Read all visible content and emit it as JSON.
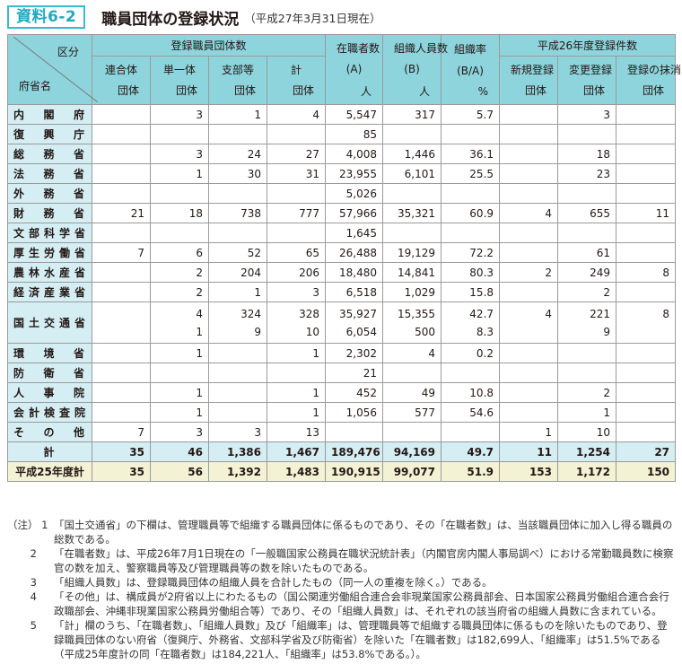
{
  "header": {
    "badge": "資料6-2",
    "title": "職員団体の登録状況",
    "subtitle": "（平成27年3月31日現在）"
  },
  "table": {
    "corner": {
      "top": "区分",
      "bottom": "府省名"
    },
    "groups": {
      "registered": "登録職員団体数",
      "incumbents": "在職者数",
      "members": "組織人員数",
      "rate": "組織率",
      "registrations": "平成26年度登録件数"
    },
    "subheaders": {
      "federation": [
        "連合体",
        "団体"
      ],
      "single": [
        "単一体",
        "団体"
      ],
      "branch": [
        "支部等",
        "団体"
      ],
      "subtotal": [
        "計",
        "団体"
      ],
      "incumbents": [
        "(A)",
        "人"
      ],
      "members": [
        "(B)",
        "人"
      ],
      "rate": [
        "(B/A)",
        "%"
      ],
      "new": [
        "新規登録",
        "団体"
      ],
      "change": [
        "変更登録",
        "団体"
      ],
      "cancel": [
        "登録の抹消",
        "団体"
      ]
    },
    "rows": [
      {
        "name": "内閣府",
        "v": [
          "",
          "3",
          "1",
          "4",
          "5,547",
          "317",
          "5.7",
          "",
          "3",
          ""
        ]
      },
      {
        "name": "復興庁",
        "v": [
          "",
          "",
          "",
          "",
          "85",
          "",
          "",
          "",
          "",
          ""
        ]
      },
      {
        "name": "総務省",
        "v": [
          "",
          "3",
          "24",
          "27",
          "4,008",
          "1,446",
          "36.1",
          "",
          "18",
          ""
        ]
      },
      {
        "name": "法務省",
        "v": [
          "",
          "1",
          "30",
          "31",
          "23,955",
          "6,101",
          "25.5",
          "",
          "23",
          ""
        ]
      },
      {
        "name": "外務省",
        "v": [
          "",
          "",
          "",
          "",
          "5,026",
          "",
          "",
          "",
          "",
          ""
        ]
      },
      {
        "name": "財務省",
        "v": [
          "21",
          "18",
          "738",
          "777",
          "57,966",
          "35,321",
          "60.9",
          "4",
          "655",
          "11"
        ]
      },
      {
        "name": "文部科学省",
        "v": [
          "",
          "",
          "",
          "",
          "1,645",
          "",
          "",
          "",
          "",
          ""
        ]
      },
      {
        "name": "厚生労働省",
        "v": [
          "7",
          "6",
          "52",
          "65",
          "26,488",
          "19,129",
          "72.2",
          "",
          "61",
          ""
        ]
      },
      {
        "name": "農林水産省",
        "v": [
          "",
          "2",
          "204",
          "206",
          "18,480",
          "14,841",
          "80.3",
          "2",
          "249",
          "8"
        ]
      },
      {
        "name": "経済産業省",
        "v": [
          "",
          "2",
          "1",
          "3",
          "6,518",
          "1,029",
          "15.8",
          "",
          "2",
          ""
        ]
      },
      {
        "name": "国土交通省",
        "v": [
          "",
          "4",
          "324",
          "328",
          "35,927",
          "15,355",
          "42.7",
          "4",
          "221",
          "8"
        ],
        "v2": [
          "",
          "1",
          "9",
          "10",
          "6,054",
          "500",
          "8.3",
          "",
          "9",
          ""
        ]
      },
      {
        "name": "環境省",
        "v": [
          "",
          "1",
          "",
          "1",
          "2,302",
          "4",
          "0.2",
          "",
          "",
          ""
        ]
      },
      {
        "name": "防衛省",
        "v": [
          "",
          "",
          "",
          "",
          "21",
          "",
          "",
          "",
          "",
          ""
        ]
      },
      {
        "name": "人事院",
        "v": [
          "",
          "1",
          "",
          "1",
          "452",
          "49",
          "10.8",
          "",
          "2",
          ""
        ]
      },
      {
        "name": "会計検査院",
        "v": [
          "",
          "1",
          "",
          "1",
          "1,056",
          "577",
          "54.6",
          "",
          "1",
          ""
        ]
      },
      {
        "name": "その他",
        "v": [
          "7",
          "3",
          "3",
          "13",
          "",
          "",
          "",
          "1",
          "10",
          ""
        ]
      }
    ],
    "total": {
      "name": "計",
      "v": [
        "35",
        "46",
        "1,386",
        "1,467",
        "189,476",
        "94,169",
        "49.7",
        "11",
        "1,254",
        "27"
      ]
    },
    "prev_total": {
      "name": "平成25年度計",
      "v": [
        "35",
        "56",
        "1,392",
        "1,483",
        "190,915",
        "99,077",
        "51.9",
        "153",
        "1,172",
        "150"
      ]
    }
  },
  "notes": [
    {
      "lead": "（注） 1",
      "text": "「国土交通省」の下欄は、管理職員等で組織する職員団体に係るものであり、その「在職者数」は、当該職員団体に加入し得る職員の総数である。"
    },
    {
      "lead": "       2",
      "text": "「在職者数」は、平成26年7月1日現在の「一般職国家公務員在職状況統計表」（内閣官房内閣人事局調べ）における常勤職員数に検察官の数を加え、警察職員等及び管理職員等の数を除いたものである。"
    },
    {
      "lead": "       3",
      "text": "「組織人員数」は、登録職員団体の組織人員を合計したもの（同一人の重複を除く。）である。"
    },
    {
      "lead": "       4",
      "text": "「その他」は、構成員が2府省以上にわたるもの（国公関連労働組合連合会非現業国家公務員部会、日本国家公務員労働組合連合会行政職部会、沖縄非現業国家公務員労働組合等）であり、その「組織人員数」は、それぞれの該当府省の組織人員数に含まれている。"
    },
    {
      "lead": "       5",
      "text": "「計」欄のうち、「在職者数」、「組織人員数」及び「組織率」は、管理職員等で組織する職員団体に係るものを除いたものであり、登録職員団体のない府省（復興庁、外務省、文部科学省及び防衛省）を除いた「在職者数」は182,699人、「組織率」は51.5%である（平成25年度計の同「在職者数」は184,221人、「組織率」は53.8%である。）。"
    }
  ]
}
